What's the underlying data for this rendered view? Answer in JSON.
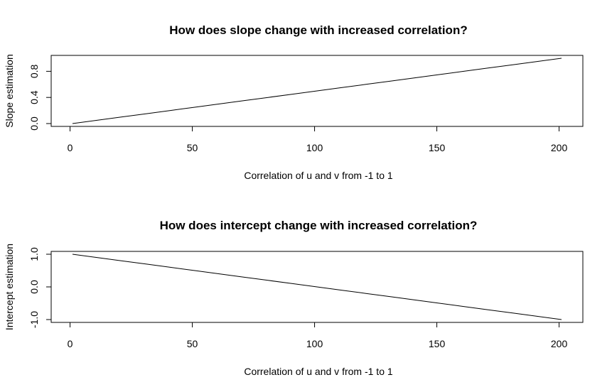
{
  "chart_data": [
    {
      "type": "line",
      "title": "How does slope change with increased correlation?",
      "xlabel": "Correlation of u and v from -1 to 1",
      "ylabel": "Slope estimation",
      "xlim": [
        1,
        201
      ],
      "ylim": [
        0,
        1
      ],
      "x_ticks": [
        "0",
        "50",
        "100",
        "150",
        "200"
      ],
      "y_ticks": [
        "0.0",
        "0.4",
        "0.8"
      ],
      "grid": false,
      "series": [
        {
          "x": [
            1,
            11,
            21,
            31,
            41,
            51,
            61,
            71,
            81,
            91,
            101,
            111,
            121,
            131,
            141,
            151,
            161,
            171,
            181,
            191,
            201
          ],
          "values": [
            0.0,
            0.05,
            0.1,
            0.15,
            0.2,
            0.25,
            0.3,
            0.35,
            0.4,
            0.45,
            0.5,
            0.55,
            0.6,
            0.65,
            0.7,
            0.75,
            0.8,
            0.85,
            0.9,
            0.95,
            1.0
          ]
        }
      ]
    },
    {
      "type": "line",
      "title": "How does intercept change with increased correlation?",
      "xlabel": "Correlation of u and v from -1 to 1",
      "ylabel": "Intercept estimation",
      "xlim": [
        1,
        201
      ],
      "ylim": [
        -1,
        1
      ],
      "x_ticks": [
        "0",
        "50",
        "100",
        "150",
        "200"
      ],
      "y_ticks": [
        "-1.0",
        "0.0",
        "1.0"
      ],
      "grid": false,
      "series": [
        {
          "x": [
            1,
            11,
            21,
            31,
            41,
            51,
            61,
            71,
            81,
            91,
            101,
            111,
            121,
            131,
            141,
            151,
            161,
            171,
            181,
            191,
            201
          ],
          "values": [
            1.0,
            0.9,
            0.8,
            0.7,
            0.6,
            0.5,
            0.4,
            0.3,
            0.2,
            0.1,
            0.0,
            -0.1,
            -0.2,
            -0.3,
            -0.4,
            -0.5,
            -0.6,
            -0.7,
            -0.8,
            -0.9,
            -1.0
          ]
        }
      ]
    }
  ]
}
